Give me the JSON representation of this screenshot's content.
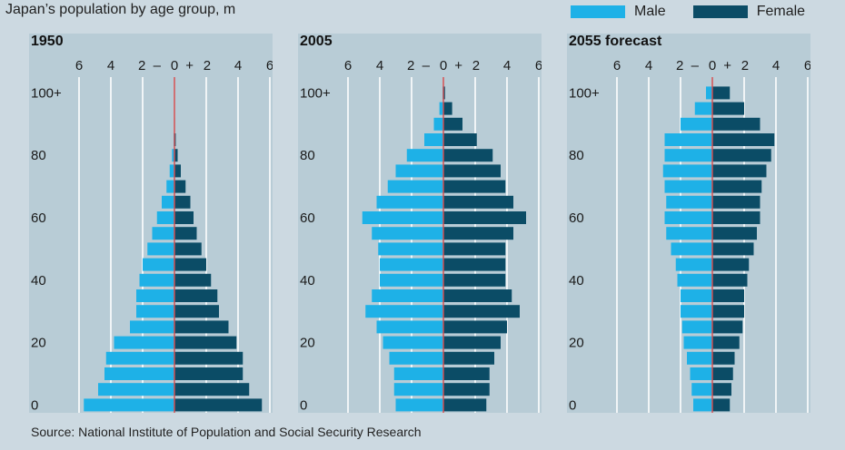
{
  "header": {
    "title": "Japan’s population by age group, m"
  },
  "legend": {
    "male_label": "Male",
    "female_label": "Female"
  },
  "colors": {
    "male": "#1eb1e7",
    "female": "#0b4c66",
    "grid": "#ffffff",
    "center_line": "#d94a4a",
    "panel_bg": "#b8ccd6"
  },
  "source": "Source: National Institute of Population and Social Security Research",
  "chart_data": [
    {
      "type": "bar",
      "orientation": "horizontal-population-pyramid",
      "title": "1950",
      "x_ticks": [
        "6",
        "4",
        "2",
        "–",
        "0",
        "+",
        "2",
        "4",
        "6"
      ],
      "y_ticks": [
        "100+",
        "80",
        "60",
        "40",
        "20",
        "0"
      ],
      "xlim": [
        -6,
        6
      ],
      "age_groups": [
        "0-4",
        "5-9",
        "10-14",
        "15-19",
        "20-24",
        "25-29",
        "30-34",
        "35-39",
        "40-44",
        "45-49",
        "50-54",
        "55-59",
        "60-64",
        "65-69",
        "70-74",
        "75-79",
        "80-84",
        "85-89",
        "90-94",
        "95-99",
        "100+"
      ],
      "series": [
        {
          "name": "Male",
          "values": [
            5.7,
            4.8,
            4.4,
            4.3,
            3.8,
            2.8,
            2.4,
            2.4,
            2.2,
            2.0,
            1.7,
            1.4,
            1.1,
            0.8,
            0.5,
            0.3,
            0.15,
            0.05,
            0.01,
            0.0,
            0.0
          ]
        },
        {
          "name": "Female",
          "values": [
            5.5,
            4.7,
            4.3,
            4.3,
            3.9,
            3.4,
            2.8,
            2.7,
            2.3,
            2.0,
            1.7,
            1.4,
            1.2,
            1.0,
            0.7,
            0.4,
            0.2,
            0.08,
            0.03,
            0.01,
            0.0
          ]
        }
      ]
    },
    {
      "type": "bar",
      "orientation": "horizontal-population-pyramid",
      "title": "2005",
      "x_ticks": [
        "6",
        "4",
        "2",
        "–",
        "0",
        "+",
        "2",
        "4",
        "6"
      ],
      "y_ticks": [
        "100+",
        "80",
        "60",
        "40",
        "20",
        "0"
      ],
      "xlim": [
        -6,
        6
      ],
      "age_groups": [
        "0-4",
        "5-9",
        "10-14",
        "15-19",
        "20-24",
        "25-29",
        "30-34",
        "35-39",
        "40-44",
        "45-49",
        "50-54",
        "55-59",
        "60-64",
        "65-69",
        "70-74",
        "75-79",
        "80-84",
        "85-89",
        "90-94",
        "95-99",
        "100+"
      ],
      "series": [
        {
          "name": "Male",
          "values": [
            3.0,
            3.1,
            3.1,
            3.4,
            3.8,
            4.2,
            4.9,
            4.5,
            4.0,
            4.0,
            4.1,
            4.5,
            5.1,
            4.2,
            3.5,
            3.0,
            2.3,
            1.2,
            0.6,
            0.25,
            0.05
          ]
        },
        {
          "name": "Female",
          "values": [
            2.7,
            2.9,
            2.9,
            3.2,
            3.6,
            4.0,
            4.8,
            4.3,
            3.9,
            3.9,
            3.9,
            4.4,
            5.2,
            4.4,
            3.9,
            3.6,
            3.1,
            2.1,
            1.2,
            0.55,
            0.1
          ]
        }
      ]
    },
    {
      "type": "bar",
      "orientation": "horizontal-population-pyramid",
      "title": "2055 forecast",
      "x_ticks": [
        "6",
        "4",
        "2",
        "–",
        "0",
        "+",
        "2",
        "4",
        "6"
      ],
      "y_ticks": [
        "100+",
        "80",
        "60",
        "40",
        "20",
        "0"
      ],
      "xlim": [
        -6,
        6
      ],
      "age_groups": [
        "0-4",
        "5-9",
        "10-14",
        "15-19",
        "20-24",
        "25-29",
        "30-34",
        "35-39",
        "40-44",
        "45-49",
        "50-54",
        "55-59",
        "60-64",
        "65-69",
        "70-74",
        "75-79",
        "80-84",
        "85-89",
        "90-94",
        "95-99",
        "100+"
      ],
      "series": [
        {
          "name": "Male",
          "values": [
            1.2,
            1.3,
            1.4,
            1.6,
            1.8,
            1.9,
            2.0,
            2.0,
            2.2,
            2.3,
            2.6,
            2.9,
            3.0,
            2.9,
            3.0,
            3.1,
            3.0,
            3.0,
            2.0,
            1.1,
            0.4
          ]
        },
        {
          "name": "Female",
          "values": [
            1.1,
            1.2,
            1.3,
            1.4,
            1.7,
            1.9,
            2.0,
            2.0,
            2.2,
            2.3,
            2.6,
            2.8,
            3.0,
            3.0,
            3.1,
            3.4,
            3.7,
            3.9,
            3.0,
            2.0,
            1.1
          ]
        }
      ]
    }
  ]
}
